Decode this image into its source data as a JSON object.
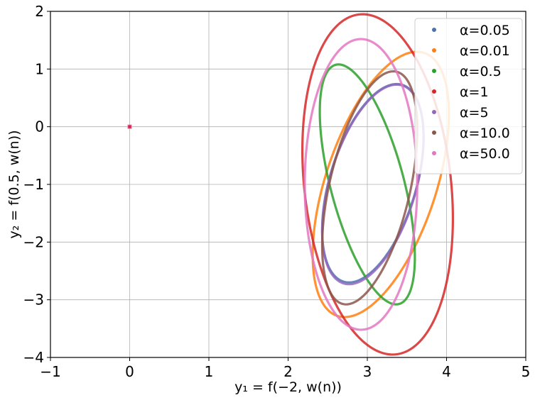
{
  "chart_data": {
    "type": "line",
    "xlabel": "y₁ = f(−2, w(n))",
    "ylabel": "y₂ = f(0.5, w(n))",
    "xlim": [
      -1,
      5
    ],
    "ylim": [
      -4,
      2
    ],
    "xticks": [
      -1,
      0,
      1,
      2,
      3,
      4,
      5
    ],
    "yticks": [
      -4,
      -3,
      -2,
      -1,
      0,
      1,
      2
    ],
    "xtick_labels": [
      "−1",
      "0",
      "1",
      "2",
      "3",
      "4",
      "5"
    ],
    "ytick_labels": [
      "−4",
      "−3",
      "−2",
      "−1",
      "0",
      "1",
      "2"
    ],
    "grid": true,
    "legend_position": "upper right",
    "marker_point": {
      "x": 0,
      "y": 0
    },
    "series": [
      {
        "name": "α=0.05",
        "color": "#4c72b0",
        "center": [
          3.07,
          -0.98
        ],
        "half_extent_x": 0.64,
        "half_extent_y": 1.72,
        "rotation": 2.06,
        "phase": 0
      },
      {
        "name": "α=0.01",
        "color": "#ff7f0e",
        "center": [
          3.17,
          -1.0
        ],
        "half_extent_x": 0.86,
        "half_extent_y": 2.3,
        "rotation": 2.13,
        "phase": 0
      },
      {
        "name": "α=0.5",
        "color": "#2ca02c",
        "center": [
          3.0,
          -1.0
        ],
        "half_extent_x": 0.6,
        "half_extent_y": 2.08,
        "rotation": 0.92,
        "phase": 0
      },
      {
        "name": "α=1",
        "color": "#d62728",
        "center": [
          3.13,
          -1.0
        ],
        "half_extent_x": 0.95,
        "half_extent_y": 2.95,
        "rotation": 1.37,
        "phase": 0
      },
      {
        "name": "α=5",
        "color": "#9467bd",
        "center": [
          3.07,
          -1.0
        ],
        "half_extent_x": 0.64,
        "half_extent_y": 1.73,
        "rotation": 2.06,
        "phase": 0
      },
      {
        "name": "α=10.0",
        "color": "#8c564b",
        "center": [
          3.03,
          -1.06
        ],
        "half_extent_x": 0.6,
        "half_extent_y": 2.02,
        "rotation": 2.09,
        "phase": 0
      },
      {
        "name": "α=50.0",
        "color": "#e377c2",
        "center": [
          2.92,
          -1.0
        ],
        "half_extent_x": 0.71,
        "half_extent_y": 2.52,
        "rotation": 1.57,
        "phase": 0
      }
    ]
  }
}
